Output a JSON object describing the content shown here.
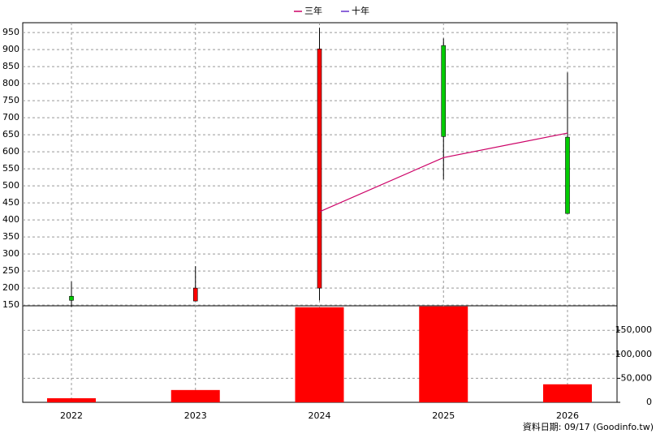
{
  "chart_data": {
    "type": "candlestick",
    "categories": [
      "2022",
      "2023",
      "2024",
      "2025",
      "2026"
    ],
    "open": [
      176,
      162,
      200,
      912,
      643
    ],
    "high": [
      219,
      264,
      964,
      933,
      833
    ],
    "low": [
      145,
      162,
      164,
      519,
      419
    ],
    "close": [
      164,
      200,
      902,
      645,
      419
    ],
    "up_color": "#ff0000",
    "down_color": "#00cc00",
    "series": [
      {
        "name": "三年",
        "color": "#cc0066",
        "values": [
          null,
          null,
          424,
          583,
          655
        ]
      },
      {
        "name": "十年",
        "color": "#6633cc",
        "values": [
          null,
          null,
          null,
          null,
          null
        ]
      }
    ],
    "ylim": [
      148,
      979
    ],
    "yticks": [
      150,
      200,
      250,
      300,
      350,
      400,
      450,
      500,
      550,
      600,
      650,
      700,
      750,
      800,
      850,
      900,
      950
    ],
    "volume": {
      "color": "#ff0000",
      "axis": "y2",
      "values": [
        8500,
        25600,
        198000,
        199700,
        37500
      ]
    },
    "y2lim": [
      0,
      201000
    ],
    "y2ticks": [
      0,
      {
        "value": 50000,
        "label": "50,000"
      },
      {
        "value": 100000,
        "label": "100,000"
      },
      {
        "value": 150000,
        "label": "150,000"
      }
    ],
    "grid": true,
    "source_note": "資料日期: 09/17  (Goodinfo.tw)"
  }
}
